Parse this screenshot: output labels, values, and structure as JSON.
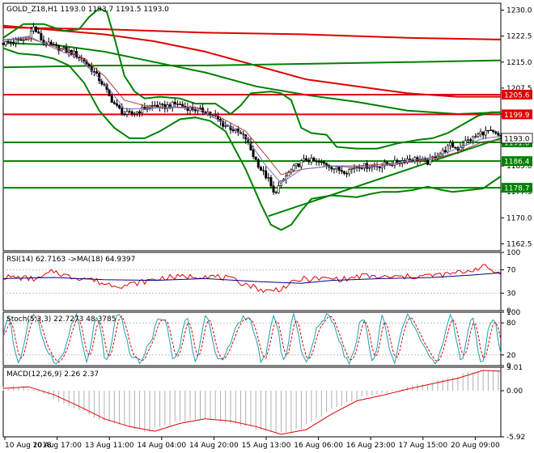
{
  "chart_data": {
    "type": "candlestick",
    "main": {
      "title": "GOLD_Z18,H1  1193.0 1193.7 1191.5 1193.0",
      "ylim": [
        1160.5,
        1232
      ],
      "yticks": [
        "1230.0",
        "1222.5",
        "1215.0",
        "1207.5",
        "1200.0",
        "1193.0",
        "1185.0",
        "1177.5",
        "1170.0",
        "1162.5"
      ],
      "levels": [
        {
          "value": 1205.6,
          "label": "1205.6",
          "color": "#e00000"
        },
        {
          "value": 1199.9,
          "label": "1199.9",
          "color": "#e00000"
        },
        {
          "value": 1191.8,
          "label": "1191.8",
          "color": "#008000"
        },
        {
          "value": 1186.4,
          "label": "1186.4",
          "color": "#008000"
        },
        {
          "value": 1178.7,
          "label": "1178.7",
          "color": "#008000"
        }
      ],
      "price_label": {
        "value": 1193.0,
        "label": "1193.0"
      },
      "trendline": {
        "start": [
          105,
          1170.5
        ],
        "end": [
          197,
          1193.0
        ],
        "color": "#008000"
      },
      "price": [
        [
          0,
          1220.5
        ],
        [
          5,
          1221
        ],
        [
          9,
          1221.5
        ],
        [
          12,
          1225
        ],
        [
          16,
          1220.5
        ],
        [
          20,
          1219.5
        ],
        [
          24,
          1218.5
        ],
        [
          28,
          1217.5
        ],
        [
          32,
          1215.5
        ],
        [
          36,
          1212
        ],
        [
          40,
          1208
        ],
        [
          42,
          1205
        ],
        [
          45,
          1202
        ],
        [
          48,
          1200
        ],
        [
          51,
          1200
        ],
        [
          54,
          1201
        ],
        [
          57,
          1202
        ],
        [
          60,
          1202.5
        ],
        [
          63,
          1202
        ],
        [
          66,
          1202.5
        ],
        [
          69,
          1203
        ],
        [
          72,
          1202
        ],
        [
          75,
          1201.5
        ],
        [
          78,
          1201
        ],
        [
          81,
          1200.5
        ],
        [
          84,
          1199
        ],
        [
          87,
          1197
        ],
        [
          90,
          1196
        ],
        [
          93,
          1194.5
        ],
        [
          96,
          1193
        ],
        [
          99,
          1188
        ],
        [
          102,
          1184
        ],
        [
          105,
          1181
        ],
        [
          107,
          1177
        ],
        [
          109,
          1179
        ],
        [
          111,
          1181
        ],
        [
          113,
          1183
        ],
        [
          116,
          1185
        ],
        [
          120,
          1187
        ],
        [
          124,
          1186
        ],
        [
          128,
          1185.5
        ],
        [
          132,
          1184
        ],
        [
          136,
          1183.5
        ],
        [
          140,
          1185
        ],
        [
          144,
          1185
        ],
        [
          148,
          1185
        ],
        [
          152,
          1185.5
        ],
        [
          156,
          1186
        ],
        [
          160,
          1187
        ],
        [
          164,
          1187
        ],
        [
          168,
          1186
        ],
        [
          171,
          1188
        ],
        [
          174,
          1189
        ],
        [
          177,
          1191
        ],
        [
          180,
          1190
        ],
        [
          183,
          1192
        ],
        [
          186,
          1193
        ],
        [
          189,
          1194.5
        ],
        [
          192,
          1195
        ],
        [
          195,
          1194
        ],
        [
          197,
          1193
        ]
      ],
      "ma_fast": [
        [
          0,
          1221
        ],
        [
          10,
          1222.5
        ],
        [
          20,
          1219
        ],
        [
          30,
          1216
        ],
        [
          40,
          1209
        ],
        [
          48,
          1201.5
        ],
        [
          58,
          1201.5
        ],
        [
          66,
          1202
        ],
        [
          76,
          1201.5
        ],
        [
          86,
          1198
        ],
        [
          96,
          1193.5
        ],
        [
          104,
          1185
        ],
        [
          110,
          1180
        ],
        [
          118,
          1184
        ],
        [
          130,
          1185
        ],
        [
          140,
          1184.5
        ],
        [
          150,
          1185
        ],
        [
          160,
          1186.5
        ],
        [
          170,
          1187.5
        ],
        [
          180,
          1190
        ],
        [
          190,
          1193
        ],
        [
          197,
          1193.5
        ]
      ],
      "ma_slow": [
        [
          0,
          1221.5
        ],
        [
          10,
          1222
        ],
        [
          20,
          1219.5
        ],
        [
          30,
          1217
        ],
        [
          40,
          1211
        ],
        [
          48,
          1204
        ],
        [
          58,
          1202
        ],
        [
          66,
          1202
        ],
        [
          76,
          1202
        ],
        [
          86,
          1199
        ],
        [
          96,
          1195
        ],
        [
          104,
          1188
        ],
        [
          110,
          1182.5
        ],
        [
          118,
          1184
        ],
        [
          130,
          1185
        ],
        [
          140,
          1185
        ],
        [
          150,
          1185.5
        ],
        [
          160,
          1186
        ],
        [
          170,
          1187
        ],
        [
          180,
          1189
        ],
        [
          190,
          1192
        ],
        [
          197,
          1192.5
        ]
      ],
      "boll_upper": [
        [
          0,
          1222
        ],
        [
          8,
          1226
        ],
        [
          16,
          1226
        ],
        [
          24,
          1224
        ],
        [
          30,
          1224.5
        ],
        [
          34,
          1228
        ],
        [
          38,
          1230.5
        ],
        [
          41,
          1229.5
        ],
        [
          44,
          1222
        ],
        [
          48,
          1211
        ],
        [
          52,
          1206.5
        ],
        [
          56,
          1204.5
        ],
        [
          62,
          1205
        ],
        [
          70,
          1204.5
        ],
        [
          76,
          1203
        ],
        [
          84,
          1203
        ],
        [
          90,
          1200
        ],
        [
          94,
          1202.5
        ],
        [
          98,
          1206
        ],
        [
          106,
          1206.5
        ],
        [
          110,
          1206
        ],
        [
          114,
          1204
        ],
        [
          118,
          1196
        ],
        [
          122,
          1194.5
        ],
        [
          128,
          1194
        ],
        [
          132,
          1190.5
        ],
        [
          140,
          1190
        ],
        [
          148,
          1190
        ],
        [
          156,
          1191.5
        ],
        [
          164,
          1192.5
        ],
        [
          170,
          1193
        ],
        [
          176,
          1194.5
        ],
        [
          182,
          1197
        ],
        [
          188,
          1199.5
        ],
        [
          193,
          1200.5
        ],
        [
          197,
          1200.5
        ]
      ],
      "boll_lower": [
        [
          0,
          1219
        ],
        [
          6,
          1217.5
        ],
        [
          14,
          1217
        ],
        [
          20,
          1216
        ],
        [
          26,
          1214
        ],
        [
          32,
          1209
        ],
        [
          38,
          1201
        ],
        [
          44,
          1196
        ],
        [
          50,
          1193
        ],
        [
          56,
          1193
        ],
        [
          62,
          1195
        ],
        [
          70,
          1198.5
        ],
        [
          76,
          1199
        ],
        [
          82,
          1198
        ],
        [
          88,
          1195
        ],
        [
          96,
          1184
        ],
        [
          102,
          1174
        ],
        [
          106,
          1168
        ],
        [
          110,
          1166.5
        ],
        [
          114,
          1168
        ],
        [
          118,
          1172
        ],
        [
          122,
          1175.5
        ],
        [
          130,
          1176.5
        ],
        [
          140,
          1176
        ],
        [
          146,
          1177
        ],
        [
          150,
          1177.5
        ],
        [
          156,
          1177.5
        ],
        [
          162,
          1178
        ],
        [
          168,
          1179
        ],
        [
          174,
          1178
        ],
        [
          178,
          1177.5
        ],
        [
          184,
          1178
        ],
        [
          190,
          1178.5
        ],
        [
          197,
          1182
        ]
      ],
      "ma_long_green": [
        [
          0,
          1220.5
        ],
        [
          20,
          1220
        ],
        [
          40,
          1218
        ],
        [
          60,
          1215
        ],
        [
          80,
          1212
        ],
        [
          100,
          1208
        ],
        [
          120,
          1205.5
        ],
        [
          140,
          1203.5
        ],
        [
          160,
          1201
        ],
        [
          180,
          1200
        ],
        [
          197,
          1200.5
        ]
      ],
      "ma_long_green2": [
        [
          0,
          1213.5
        ],
        [
          40,
          1214
        ],
        [
          80,
          1214
        ],
        [
          120,
          1214.5
        ],
        [
          160,
          1215
        ],
        [
          197,
          1215.5
        ]
      ],
      "ma_long_red": [
        [
          0,
          1225.5
        ],
        [
          40,
          1223
        ],
        [
          60,
          1221
        ],
        [
          80,
          1218
        ],
        [
          100,
          1214
        ],
        [
          120,
          1210
        ],
        [
          140,
          1208
        ],
        [
          160,
          1206
        ],
        [
          180,
          1205
        ],
        [
          197,
          1205
        ]
      ],
      "ma_long_red2": [
        [
          0,
          1225
        ],
        [
          40,
          1224.5
        ],
        [
          80,
          1223.5
        ],
        [
          120,
          1223
        ],
        [
          160,
          1222
        ],
        [
          197,
          1221.5
        ]
      ]
    },
    "rsi": {
      "title": "RSI(14) 62.7163  ->MA(18) 64.9397",
      "ylim": [
        0,
        100
      ],
      "yticks": [
        "100",
        "70",
        "30",
        "0"
      ],
      "rsi": [
        [
          0,
          58
        ],
        [
          8,
          56
        ],
        [
          14,
          54
        ],
        [
          20,
          68
        ],
        [
          26,
          58
        ],
        [
          34,
          55
        ],
        [
          40,
          46
        ],
        [
          48,
          43
        ],
        [
          56,
          50
        ],
        [
          64,
          57
        ],
        [
          72,
          58
        ],
        [
          80,
          60
        ],
        [
          88,
          56
        ],
        [
          96,
          46
        ],
        [
          104,
          33
        ],
        [
          110,
          38
        ],
        [
          118,
          54
        ],
        [
          128,
          55
        ],
        [
          136,
          54
        ],
        [
          142,
          60
        ],
        [
          150,
          57
        ],
        [
          160,
          58
        ],
        [
          168,
          60
        ],
        [
          176,
          62
        ],
        [
          184,
          68
        ],
        [
          190,
          76
        ],
        [
          194,
          68
        ],
        [
          197,
          63
        ]
      ],
      "ma": [
        [
          0,
          55
        ],
        [
          20,
          57
        ],
        [
          40,
          53
        ],
        [
          60,
          52
        ],
        [
          80,
          55
        ],
        [
          100,
          50
        ],
        [
          118,
          47
        ],
        [
          130,
          52
        ],
        [
          150,
          55
        ],
        [
          170,
          57
        ],
        [
          185,
          61
        ],
        [
          197,
          65
        ]
      ]
    },
    "stoch": {
      "title": "Stoch(5,3,3) 22.7273 48.3785",
      "ylim": [
        0,
        100
      ],
      "yticks": [
        "100",
        "80",
        "20",
        "0"
      ]
    },
    "macd": {
      "title": "MACD(12,26,9) 2.26 2.37",
      "ylim": [
        -5.92,
        3.01
      ],
      "yticks": [
        "3.01",
        "0.00",
        "-5.92"
      ],
      "signal": [
        [
          0,
          0.3
        ],
        [
          10,
          0.5
        ],
        [
          20,
          -0.5
        ],
        [
          30,
          -2
        ],
        [
          40,
          -3.6
        ],
        [
          50,
          -4.6
        ],
        [
          60,
          -5.2
        ],
        [
          70,
          -4.2
        ],
        [
          80,
          -3.6
        ],
        [
          90,
          -3.9
        ],
        [
          100,
          -4.6
        ],
        [
          110,
          -5.6
        ],
        [
          120,
          -5
        ],
        [
          130,
          -3
        ],
        [
          140,
          -1.3
        ],
        [
          150,
          -0.6
        ],
        [
          160,
          0.2
        ],
        [
          170,
          0.9
        ],
        [
          180,
          1.6
        ],
        [
          190,
          2.6
        ],
        [
          197,
          2.5
        ]
      ]
    },
    "xticks": [
      "10 Aug 2018",
      "10 Aug 17:00",
      "13 Aug 11:00",
      "14 Aug 04:00",
      "14 Aug 20:00",
      "15 Aug 13:00",
      "16 Aug 06:00",
      "16 Aug 23:00",
      "17 Aug 15:00",
      "20 Aug 09:00"
    ]
  }
}
